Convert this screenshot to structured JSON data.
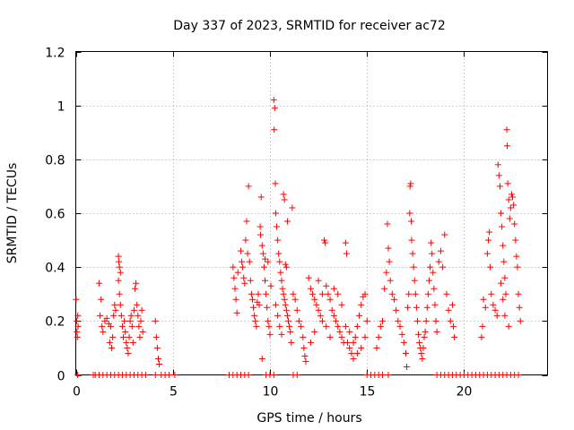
{
  "chart_data": {
    "type": "scatter",
    "title": "Day 337 of 2023, SRMTID for receiver ac72",
    "xlabel": "GPS time / hours",
    "ylabel": "SRMTID / TECUs",
    "xlim": [
      0,
      24.3
    ],
    "ylim": [
      0,
      1.2
    ],
    "xticks": [
      0,
      5,
      10,
      15,
      20
    ],
    "xtick_labels": [
      "0",
      "5",
      "10",
      "15",
      "20"
    ],
    "yticks": [
      0,
      0.2,
      0.4,
      0.6,
      0.8,
      1.0,
      1.2
    ],
    "ytick_labels": [
      "0",
      "0.2",
      "0.4",
      "0.6",
      "0.8",
      "1",
      "1.2"
    ],
    "grid": true,
    "marker": "+",
    "colors": {
      "series": "#ff0000",
      "grid": "#a0a0a0",
      "axis": "#000000"
    },
    "series": [
      {
        "name": "SRMTID",
        "points": [
          [
            0.02,
            0.28
          ],
          [
            0.05,
            0.2
          ],
          [
            0.06,
            0.16
          ],
          [
            0.08,
            0.14
          ],
          [
            0.1,
            0.22
          ],
          [
            0.12,
            0.18
          ],
          [
            1.2,
            0.34
          ],
          [
            1.3,
            0.28
          ],
          [
            1.25,
            0.22
          ],
          [
            1.35,
            0.18
          ],
          [
            1.4,
            0.16
          ],
          [
            1.5,
            0.2
          ],
          [
            1.6,
            0.21
          ],
          [
            1.7,
            0.19
          ],
          [
            1.8,
            0.18
          ],
          [
            1.75,
            0.12
          ],
          [
            1.85,
            0.1
          ],
          [
            1.9,
            0.14
          ],
          [
            1.95,
            0.22
          ],
          [
            2.0,
            0.26
          ],
          [
            2.05,
            0.24
          ],
          [
            2.2,
            0.44
          ],
          [
            2.22,
            0.42
          ],
          [
            2.25,
            0.4
          ],
          [
            2.3,
            0.38
          ],
          [
            2.2,
            0.35
          ],
          [
            2.25,
            0.3
          ],
          [
            2.3,
            0.26
          ],
          [
            2.35,
            0.22
          ],
          [
            2.4,
            0.18
          ],
          [
            2.45,
            0.14
          ],
          [
            2.5,
            0.2
          ],
          [
            2.55,
            0.16
          ],
          [
            2.6,
            0.12
          ],
          [
            2.65,
            0.1
          ],
          [
            2.7,
            0.08
          ],
          [
            2.75,
            0.14
          ],
          [
            2.8,
            0.2
          ],
          [
            2.85,
            0.22
          ],
          [
            2.9,
            0.18
          ],
          [
            2.95,
            0.12
          ],
          [
            3.0,
            0.24
          ],
          [
            3.05,
            0.32
          ],
          [
            3.1,
            0.34
          ],
          [
            3.15,
            0.26
          ],
          [
            3.2,
            0.22
          ],
          [
            3.25,
            0.18
          ],
          [
            3.3,
            0.14
          ],
          [
            3.35,
            0.2
          ],
          [
            3.4,
            0.24
          ],
          [
            3.45,
            0.16
          ],
          [
            4.1,
            0.2
          ],
          [
            4.15,
            0.14
          ],
          [
            4.2,
            0.1
          ],
          [
            4.25,
            0.06
          ],
          [
            4.3,
            0.04
          ],
          [
            8.1,
            0.4
          ],
          [
            8.15,
            0.36
          ],
          [
            8.2,
            0.32
          ],
          [
            8.25,
            0.28
          ],
          [
            8.3,
            0.23
          ],
          [
            8.35,
            0.38
          ],
          [
            8.5,
            0.46
          ],
          [
            8.55,
            0.42
          ],
          [
            8.6,
            0.4
          ],
          [
            8.65,
            0.36
          ],
          [
            8.7,
            0.34
          ],
          [
            8.75,
            0.5
          ],
          [
            8.8,
            0.57
          ],
          [
            8.85,
            0.45
          ],
          [
            8.9,
            0.7
          ],
          [
            8.95,
            0.42
          ],
          [
            9.0,
            0.35
          ],
          [
            9.05,
            0.3
          ],
          [
            9.1,
            0.28
          ],
          [
            9.15,
            0.25
          ],
          [
            9.2,
            0.22
          ],
          [
            9.25,
            0.2
          ],
          [
            9.3,
            0.18
          ],
          [
            9.35,
            0.27
          ],
          [
            9.4,
            0.3
          ],
          [
            9.45,
            0.26
          ],
          [
            9.5,
            0.55
          ],
          [
            9.52,
            0.52
          ],
          [
            9.55,
            0.66
          ],
          [
            9.6,
            0.48
          ],
          [
            9.65,
            0.45
          ],
          [
            9.7,
            0.4
          ],
          [
            9.75,
            0.35
          ],
          [
            9.8,
            0.3
          ],
          [
            9.85,
            0.25
          ],
          [
            9.9,
            0.2
          ],
          [
            9.95,
            0.18
          ],
          [
            10.0,
            0.15
          ],
          [
            9.6,
            0.06
          ],
          [
            9.75,
            0.43
          ],
          [
            9.9,
            0.42
          ],
          [
            10.05,
            0.33
          ],
          [
            10.2,
            1.02
          ],
          [
            10.25,
            0.99
          ],
          [
            10.22,
            0.91
          ],
          [
            10.28,
            0.71
          ],
          [
            10.3,
            0.6
          ],
          [
            10.35,
            0.55
          ],
          [
            10.4,
            0.5
          ],
          [
            10.45,
            0.45
          ],
          [
            10.5,
            0.42
          ],
          [
            10.55,
            0.38
          ],
          [
            10.6,
            0.35
          ],
          [
            10.65,
            0.32
          ],
          [
            10.7,
            0.3
          ],
          [
            10.75,
            0.28
          ],
          [
            10.8,
            0.26
          ],
          [
            10.85,
            0.24
          ],
          [
            10.9,
            0.22
          ],
          [
            10.95,
            0.2
          ],
          [
            11.0,
            0.18
          ],
          [
            11.05,
            0.16
          ],
          [
            11.1,
            0.12
          ],
          [
            10.7,
            0.67
          ],
          [
            10.75,
            0.65
          ],
          [
            10.9,
            0.57
          ],
          [
            10.3,
            0.26
          ],
          [
            10.4,
            0.22
          ],
          [
            10.5,
            0.18
          ],
          [
            10.6,
            0.15
          ],
          [
            10.8,
            0.41
          ],
          [
            10.85,
            0.4
          ],
          [
            11.15,
            0.62
          ],
          [
            11.2,
            0.3
          ],
          [
            11.3,
            0.28
          ],
          [
            11.4,
            0.24
          ],
          [
            11.5,
            0.2
          ],
          [
            11.6,
            0.18
          ],
          [
            11.7,
            0.14
          ],
          [
            11.75,
            0.1
          ],
          [
            11.8,
            0.07
          ],
          [
            11.85,
            0.05
          ],
          [
            12.0,
            0.36
          ],
          [
            12.1,
            0.32
          ],
          [
            12.2,
            0.3
          ],
          [
            12.3,
            0.28
          ],
          [
            12.4,
            0.26
          ],
          [
            12.5,
            0.24
          ],
          [
            12.6,
            0.22
          ],
          [
            12.7,
            0.2
          ],
          [
            12.8,
            0.5
          ],
          [
            12.85,
            0.49
          ],
          [
            12.9,
            0.33
          ],
          [
            13.0,
            0.3
          ],
          [
            13.1,
            0.28
          ],
          [
            13.2,
            0.24
          ],
          [
            13.3,
            0.22
          ],
          [
            13.4,
            0.2
          ],
          [
            13.5,
            0.18
          ],
          [
            13.6,
            0.16
          ],
          [
            13.7,
            0.14
          ],
          [
            13.8,
            0.12
          ],
          [
            13.9,
            0.49
          ],
          [
            13.95,
            0.45
          ],
          [
            14.0,
            0.12
          ],
          [
            14.1,
            0.1
          ],
          [
            14.2,
            0.08
          ],
          [
            14.3,
            0.06
          ],
          [
            14.4,
            0.14
          ],
          [
            14.5,
            0.18
          ],
          [
            14.6,
            0.22
          ],
          [
            14.7,
            0.26
          ],
          [
            14.8,
            0.29
          ],
          [
            14.9,
            0.3
          ],
          [
            15.0,
            0.2
          ],
          [
            12.1,
            0.12
          ],
          [
            12.3,
            0.16
          ],
          [
            12.5,
            0.35
          ],
          [
            12.7,
            0.3
          ],
          [
            12.9,
            0.18
          ],
          [
            13.1,
            0.14
          ],
          [
            13.3,
            0.32
          ],
          [
            13.5,
            0.3
          ],
          [
            13.7,
            0.26
          ],
          [
            13.9,
            0.18
          ],
          [
            14.1,
            0.16
          ],
          [
            14.3,
            0.12
          ],
          [
            14.5,
            0.08
          ],
          [
            14.7,
            0.1
          ],
          [
            14.9,
            0.14
          ],
          [
            15.5,
            0.1
          ],
          [
            15.6,
            0.14
          ],
          [
            15.7,
            0.18
          ],
          [
            15.8,
            0.2
          ],
          [
            15.9,
            0.32
          ],
          [
            16.0,
            0.38
          ],
          [
            16.05,
            0.56
          ],
          [
            16.1,
            0.47
          ],
          [
            16.15,
            0.42
          ],
          [
            16.2,
            0.35
          ],
          [
            16.3,
            0.3
          ],
          [
            16.4,
            0.28
          ],
          [
            16.5,
            0.24
          ],
          [
            16.6,
            0.2
          ],
          [
            16.7,
            0.18
          ],
          [
            16.8,
            0.15
          ],
          [
            16.9,
            0.12
          ],
          [
            17.0,
            0.08
          ],
          [
            17.05,
            0.03
          ],
          [
            17.1,
            0.25
          ],
          [
            17.15,
            0.3
          ],
          [
            17.2,
            0.6
          ],
          [
            17.22,
            0.7
          ],
          [
            17.25,
            0.71
          ],
          [
            17.28,
            0.57
          ],
          [
            17.3,
            0.5
          ],
          [
            17.35,
            0.45
          ],
          [
            17.4,
            0.4
          ],
          [
            17.45,
            0.35
          ],
          [
            17.5,
            0.3
          ],
          [
            17.55,
            0.25
          ],
          [
            17.6,
            0.2
          ],
          [
            17.65,
            0.15
          ],
          [
            17.7,
            0.12
          ],
          [
            17.75,
            0.1
          ],
          [
            17.8,
            0.08
          ],
          [
            17.85,
            0.06
          ],
          [
            17.9,
            0.1
          ],
          [
            17.95,
            0.14
          ],
          [
            18.0,
            0.16
          ],
          [
            18.05,
            0.2
          ],
          [
            18.1,
            0.25
          ],
          [
            18.15,
            0.3
          ],
          [
            18.2,
            0.35
          ],
          [
            18.25,
            0.4
          ],
          [
            18.3,
            0.49
          ],
          [
            18.35,
            0.45
          ],
          [
            18.4,
            0.38
          ],
          [
            18.45,
            0.32
          ],
          [
            18.5,
            0.26
          ],
          [
            18.55,
            0.2
          ],
          [
            18.6,
            0.16
          ],
          [
            18.7,
            0.42
          ],
          [
            18.8,
            0.46
          ],
          [
            18.9,
            0.4
          ],
          [
            19.0,
            0.52
          ],
          [
            19.1,
            0.3
          ],
          [
            19.2,
            0.24
          ],
          [
            19.3,
            0.2
          ],
          [
            19.4,
            0.26
          ],
          [
            19.45,
            0.18
          ],
          [
            19.5,
            0.14
          ],
          [
            20.9,
            0.14
          ],
          [
            20.95,
            0.18
          ],
          [
            21.0,
            0.28
          ],
          [
            21.1,
            0.25
          ],
          [
            21.2,
            0.45
          ],
          [
            21.25,
            0.5
          ],
          [
            21.3,
            0.53
          ],
          [
            21.35,
            0.4
          ],
          [
            21.4,
            0.3
          ],
          [
            21.5,
            0.26
          ],
          [
            21.6,
            0.24
          ],
          [
            21.7,
            0.22
          ],
          [
            21.75,
            0.78
          ],
          [
            21.8,
            0.74
          ],
          [
            21.85,
            0.7
          ],
          [
            21.9,
            0.6
          ],
          [
            21.95,
            0.55
          ],
          [
            22.0,
            0.48
          ],
          [
            22.05,
            0.42
          ],
          [
            22.1,
            0.36
          ],
          [
            22.15,
            0.3
          ],
          [
            22.2,
            0.91
          ],
          [
            22.22,
            0.85
          ],
          [
            22.25,
            0.71
          ],
          [
            22.3,
            0.65
          ],
          [
            22.35,
            0.58
          ],
          [
            22.4,
            0.62
          ],
          [
            22.45,
            0.67
          ],
          [
            22.5,
            0.66
          ],
          [
            22.55,
            0.63
          ],
          [
            22.6,
            0.56
          ],
          [
            22.65,
            0.5
          ],
          [
            22.7,
            0.44
          ],
          [
            22.75,
            0.4
          ],
          [
            22.8,
            0.3
          ],
          [
            22.85,
            0.25
          ],
          [
            22.9,
            0.2
          ],
          [
            21.9,
            0.34
          ],
          [
            22.0,
            0.28
          ],
          [
            22.1,
            0.22
          ],
          [
            22.3,
            0.18
          ]
        ]
      }
    ],
    "zero_points_x": [
      0.1,
      0.9,
      1.0,
      1.2,
      1.4,
      1.6,
      1.8,
      2.0,
      2.2,
      2.4,
      2.6,
      2.8,
      3.0,
      3.2,
      3.4,
      3.6,
      4.1,
      4.4,
      4.6,
      4.8,
      5.1,
      7.9,
      8.1,
      8.3,
      8.5,
      8.7,
      8.9,
      9.8,
      10.0,
      10.2,
      11.2,
      11.4,
      15.0,
      15.2,
      15.4,
      15.6,
      15.8,
      16.1,
      18.6,
      18.8,
      19.0,
      19.2,
      19.4,
      19.6,
      19.8,
      20.0,
      20.2,
      20.4,
      20.6,
      20.8,
      21.0,
      21.2,
      21.4,
      21.6,
      21.8,
      22.0,
      22.2,
      22.4,
      22.6,
      22.8
    ]
  }
}
